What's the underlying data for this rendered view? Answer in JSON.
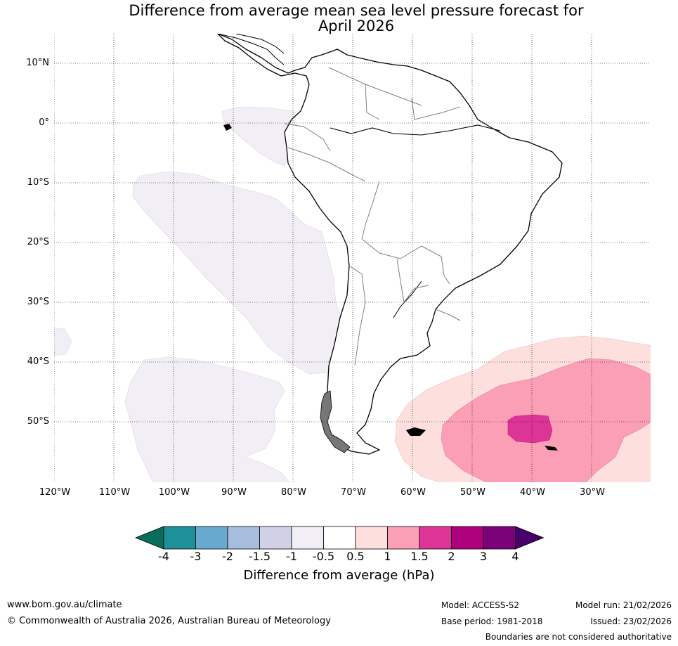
{
  "title_line1": "Difference from average mean sea level pressure forecast for",
  "title_line2": "April 2026",
  "latitude_labels": [
    "10°N",
    "0°",
    "10°S",
    "20°S",
    "30°S",
    "40°S",
    "50°S"
  ],
  "longitude_labels": [
    "120°W",
    "110°W",
    "100°W",
    "90°W",
    "80°W",
    "70°W",
    "60°W",
    "50°W",
    "40°W",
    "30°W"
  ],
  "anomaly_regions": [
    {
      "name": "Eastern Pacific near equator",
      "range_hPa": "-1 to -0.5"
    },
    {
      "name": "Southeast Pacific off Peru and Chile",
      "range_hPa": "-1 to -0.5"
    },
    {
      "name": "Far southeast Pacific",
      "range_hPa": "-1 to -0.5"
    },
    {
      "name": "South Atlantic outer",
      "range_hPa": "0.5 to 1"
    },
    {
      "name": "South Atlantic inner",
      "range_hPa": "1 to 1.5"
    },
    {
      "name": "South Atlantic core",
      "range_hPa": "1.5 to 2"
    }
  ],
  "colorbar": {
    "ticks": [
      "-4",
      "-3",
      "-2",
      "-1.5",
      "-1",
      "-0.5",
      "0.5",
      "1",
      "1.5",
      "2",
      "3",
      "4"
    ],
    "colors": [
      "#076d5d",
      "#1d9099",
      "#67a9cf",
      "#a6bddb",
      "#d0d1e6",
      "#f1eef6",
      "#ffffff",
      "#fde0dd",
      "#fa9fb5",
      "#dd3497",
      "#ae017e",
      "#7a0177",
      "#49006a"
    ],
    "label": "Difference from average (hPa)"
  },
  "footer": {
    "website": "www.bom.gov.au/climate",
    "copyright": "© Commonwealth of Australia 2026, Australian Bureau of Meteorology",
    "model": "Model: ACCESS-S2",
    "base_period": "Base period: 1981-2018",
    "model_run": "Model run: 21/02/2026",
    "issued": "Issued: 23/02/2026",
    "disclaimer": "Boundaries are not considered authoritative"
  }
}
